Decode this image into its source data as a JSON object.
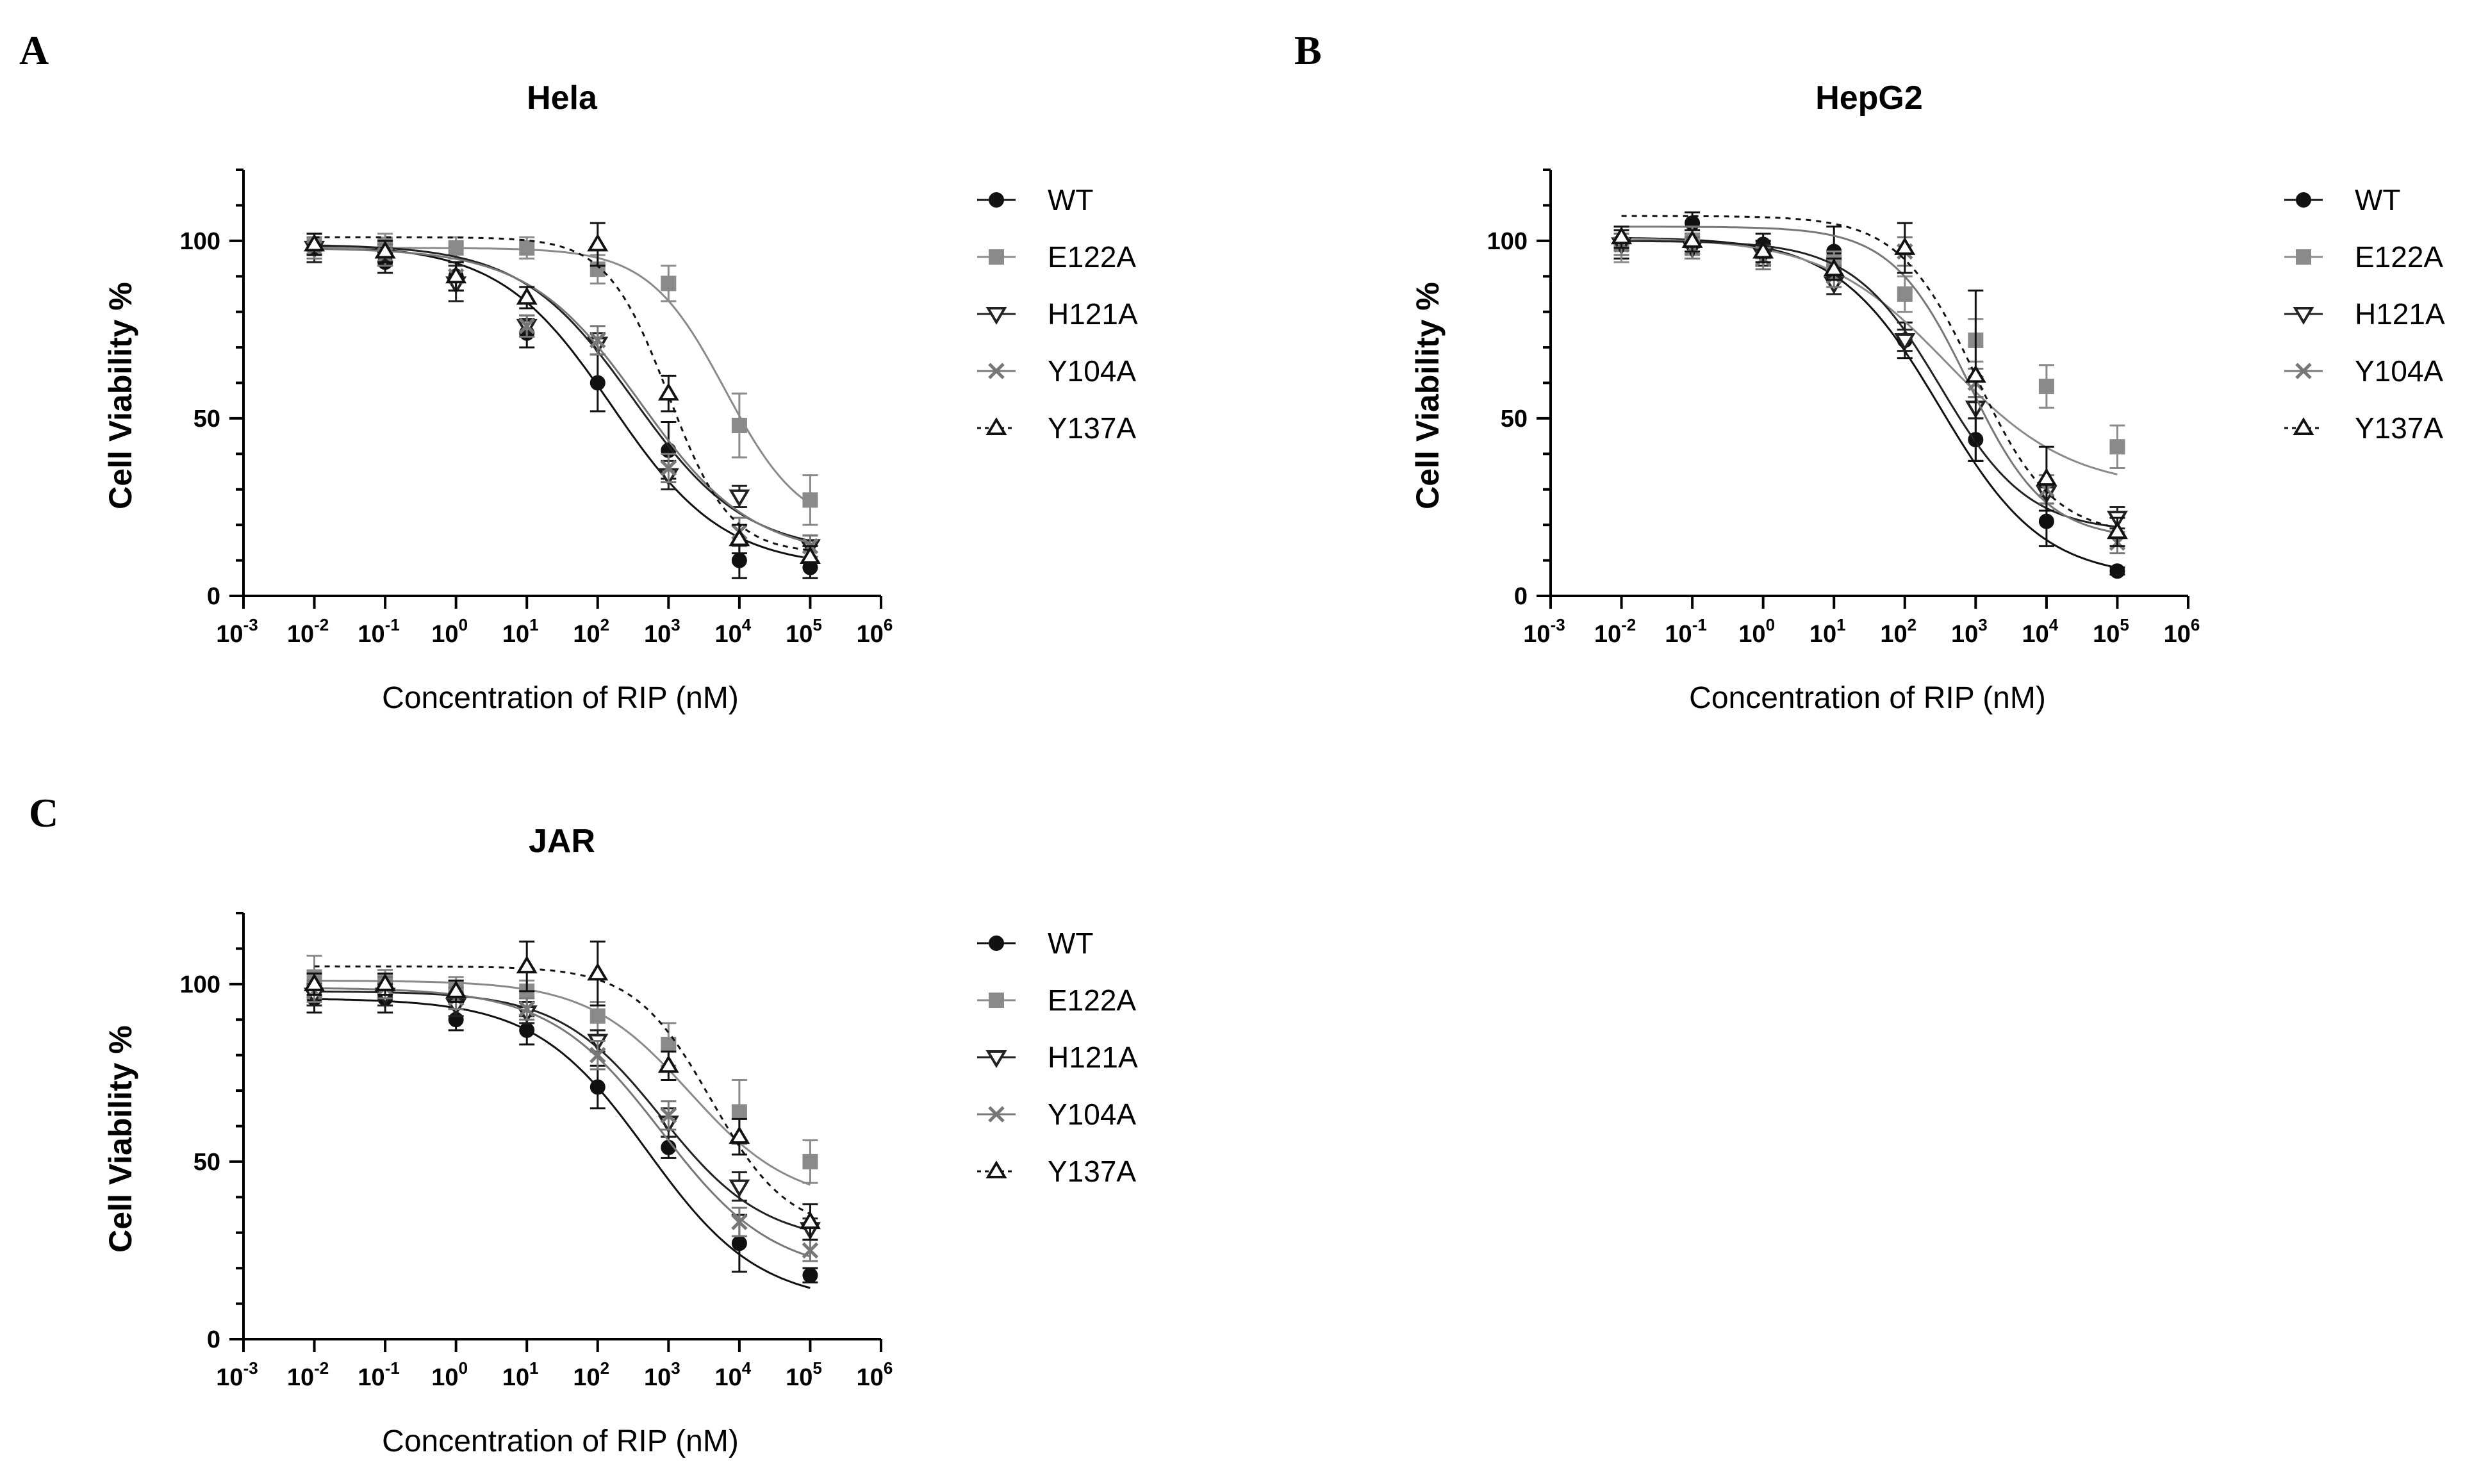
{
  "figure": {
    "panels": [
      "A",
      "B",
      "C"
    ]
  },
  "series_styles": {
    "WT": {
      "color": "#111111",
      "marker": "filled-circle",
      "dash": ""
    },
    "E122A": {
      "color": "#8a8a8a",
      "marker": "filled-square",
      "dash": ""
    },
    "H121A": {
      "color": "#222222",
      "marker": "open-triangle-down",
      "dash": ""
    },
    "Y104A": {
      "color": "#777777",
      "marker": "x-mark",
      "dash": ""
    },
    "Y137A": {
      "color": "#111111",
      "marker": "open-triangle-up",
      "dash": "8,8"
    }
  },
  "chart_data": [
    {
      "panel": "A",
      "type": "scatter",
      "title": "Hela",
      "xlabel": "Concentration of RIP (nM)",
      "ylabel": "Cell Viability %",
      "xscale": "log10",
      "xlim_exp": [
        -3,
        6
      ],
      "xtick_exponents": [
        "-3",
        "-2",
        "-1",
        "0",
        "1",
        "2",
        "3",
        "4",
        "5",
        "6"
      ],
      "ylim": [
        0,
        120
      ],
      "yticks": [
        0,
        50,
        100
      ],
      "x_exp": [
        -2,
        -1,
        0,
        1,
        2,
        3,
        4,
        5
      ],
      "legend": [
        "WT",
        "E122A",
        "H121A",
        "Y104A",
        "Y137A"
      ],
      "legend_position": "right",
      "series": [
        {
          "name": "WT",
          "values": [
            98,
            94,
            90,
            74,
            60,
            41,
            10,
            8
          ],
          "errors": [
            4,
            3,
            4,
            4,
            8,
            8,
            5,
            3
          ],
          "fit": {
            "top": 99,
            "bottom": 8,
            "logEC50": 2.2,
            "hill": 0.55
          }
        },
        {
          "name": "E122A",
          "values": [
            99,
            99,
            98,
            98,
            92,
            88,
            48,
            27
          ],
          "errors": [
            3,
            3,
            3,
            3,
            4,
            5,
            9,
            7
          ],
          "fit": {
            "top": 98,
            "bottom": 18,
            "logEC50": 3.8,
            "hill": 0.8
          }
        },
        {
          "name": "H121A",
          "values": [
            98,
            96,
            88,
            76,
            71,
            34,
            28,
            14
          ],
          "errors": [
            4,
            3,
            5,
            3,
            3,
            4,
            3,
            3
          ],
          "fit": {
            "top": 99,
            "bottom": 12,
            "logEC50": 2.5,
            "hill": 0.55
          }
        },
        {
          "name": "Y104A",
          "values": [
            98,
            96,
            90,
            76,
            72,
            36,
            18,
            14
          ],
          "errors": [
            3,
            3,
            4,
            3,
            4,
            4,
            4,
            3
          ],
          "fit": {
            "top": 98,
            "bottom": 11,
            "logEC50": 2.6,
            "hill": 0.55
          }
        },
        {
          "name": "Y137A",
          "values": [
            99,
            97,
            90,
            84,
            99,
            57,
            16,
            11
          ],
          "errors": [
            3,
            3,
            4,
            3,
            6,
            5,
            4,
            3
          ],
          "fit": {
            "top": 101,
            "bottom": 12,
            "logEC50": 3.0,
            "hill": 1.0
          }
        }
      ]
    },
    {
      "panel": "B",
      "type": "scatter",
      "title": "HepG2",
      "xlabel": "Concentration of RIP (nM)",
      "ylabel": "Cell Viability %",
      "xscale": "log10",
      "xlim_exp": [
        -3,
        6
      ],
      "xtick_exponents": [
        "-3",
        "-2",
        "-1",
        "0",
        "1",
        "2",
        "3",
        "4",
        "5",
        "6"
      ],
      "ylim": [
        0,
        120
      ],
      "yticks": [
        0,
        50,
        100
      ],
      "x_exp": [
        -2,
        -1,
        0,
        1,
        2,
        3,
        4,
        5
      ],
      "legend": [
        "WT",
        "E122A",
        "H121A",
        "Y104A",
        "Y137A"
      ],
      "legend_position": "right",
      "series": [
        {
          "name": "WT",
          "values": [
            99,
            105,
            99,
            97,
            72,
            44,
            21,
            7
          ],
          "errors": [
            4,
            3,
            3,
            7,
            5,
            6,
            7,
            1
          ],
          "fit": {
            "top": 101,
            "bottom": 5,
            "logEC50": 2.5,
            "hill": 0.6
          }
        },
        {
          "name": "E122A",
          "values": [
            99,
            100,
            97,
            94,
            85,
            72,
            59,
            42
          ],
          "errors": [
            5,
            4,
            3,
            3,
            5,
            6,
            6,
            6
          ],
          "fit": {
            "top": 101,
            "bottom": 30,
            "logEC50": 2.6,
            "hill": 0.5
          }
        },
        {
          "name": "H121A",
          "values": [
            99,
            98,
            96,
            88,
            72,
            53,
            29,
            22
          ],
          "errors": [
            3,
            3,
            3,
            3,
            3,
            3,
            3,
            3
          ],
          "fit": {
            "top": 100,
            "bottom": 18,
            "logEC50": 2.5,
            "hill": 0.7
          }
        },
        {
          "name": "Y104A",
          "values": [
            99,
            98,
            95,
            90,
            97,
            60,
            30,
            15
          ],
          "errors": [
            3,
            3,
            3,
            3,
            4,
            4,
            4,
            3
          ],
          "fit": {
            "top": 104,
            "bottom": 16,
            "logEC50": 2.9,
            "hill": 0.8
          }
        },
        {
          "name": "Y137A",
          "values": [
            101,
            100,
            97,
            92,
            98,
            62,
            33,
            18
          ],
          "errors": [
            3,
            3,
            3,
            3,
            7,
            24,
            9,
            4
          ],
          "fit": {
            "top": 107,
            "bottom": 17,
            "logEC50": 3.0,
            "hill": 0.8
          }
        }
      ]
    },
    {
      "panel": "C",
      "type": "scatter",
      "title": "JAR",
      "xlabel": "Concentration of RIP (nM)",
      "ylabel": "Cell Viability %",
      "xscale": "log10",
      "xlim_exp": [
        -3,
        6
      ],
      "xtick_exponents": [
        "-3",
        "-2",
        "-1",
        "0",
        "1",
        "2",
        "3",
        "4",
        "5",
        "6"
      ],
      "ylim": [
        0,
        120
      ],
      "yticks": [
        0,
        50,
        100
      ],
      "x_exp": [
        -2,
        -1,
        0,
        1,
        2,
        3,
        4,
        5
      ],
      "legend": [
        "WT",
        "E122A",
        "H121A",
        "Y104A",
        "Y137A"
      ],
      "legend_position": "right",
      "series": [
        {
          "name": "WT",
          "values": [
            96,
            96,
            90,
            87,
            71,
            54,
            27,
            18
          ],
          "errors": [
            4,
            4,
            3,
            4,
            6,
            3,
            8,
            2
          ],
          "fit": {
            "top": 96,
            "bottom": 10,
            "logEC50": 2.7,
            "hill": 0.55
          }
        },
        {
          "name": "E122A",
          "values": [
            102,
            101,
            99,
            98,
            91,
            83,
            64,
            50
          ],
          "errors": [
            6,
            3,
            3,
            3,
            4,
            6,
            9,
            6
          ],
          "fit": {
            "top": 101,
            "bottom": 38,
            "logEC50": 3.3,
            "hill": 0.6
          }
        },
        {
          "name": "H121A",
          "values": [
            97,
            97,
            94,
            92,
            84,
            61,
            43,
            31
          ],
          "errors": [
            3,
            3,
            3,
            3,
            3,
            4,
            4,
            3
          ],
          "fit": {
            "top": 98,
            "bottom": 27,
            "logEC50": 2.9,
            "hill": 0.6
          }
        },
        {
          "name": "Y104A",
          "values": [
            98,
            99,
            96,
            93,
            80,
            63,
            33,
            25
          ],
          "errors": [
            3,
            3,
            3,
            3,
            4,
            4,
            4,
            3
          ],
          "fit": {
            "top": 99,
            "bottom": 18,
            "logEC50": 2.9,
            "hill": 0.55
          }
        },
        {
          "name": "Y137A",
          "values": [
            100,
            100,
            98,
            105,
            103,
            77,
            57,
            33
          ],
          "errors": [
            3,
            3,
            3,
            7,
            9,
            4,
            5,
            5
          ],
          "fit": {
            "top": 105,
            "bottom": 30,
            "logEC50": 3.6,
            "hill": 0.8
          }
        }
      ]
    }
  ]
}
